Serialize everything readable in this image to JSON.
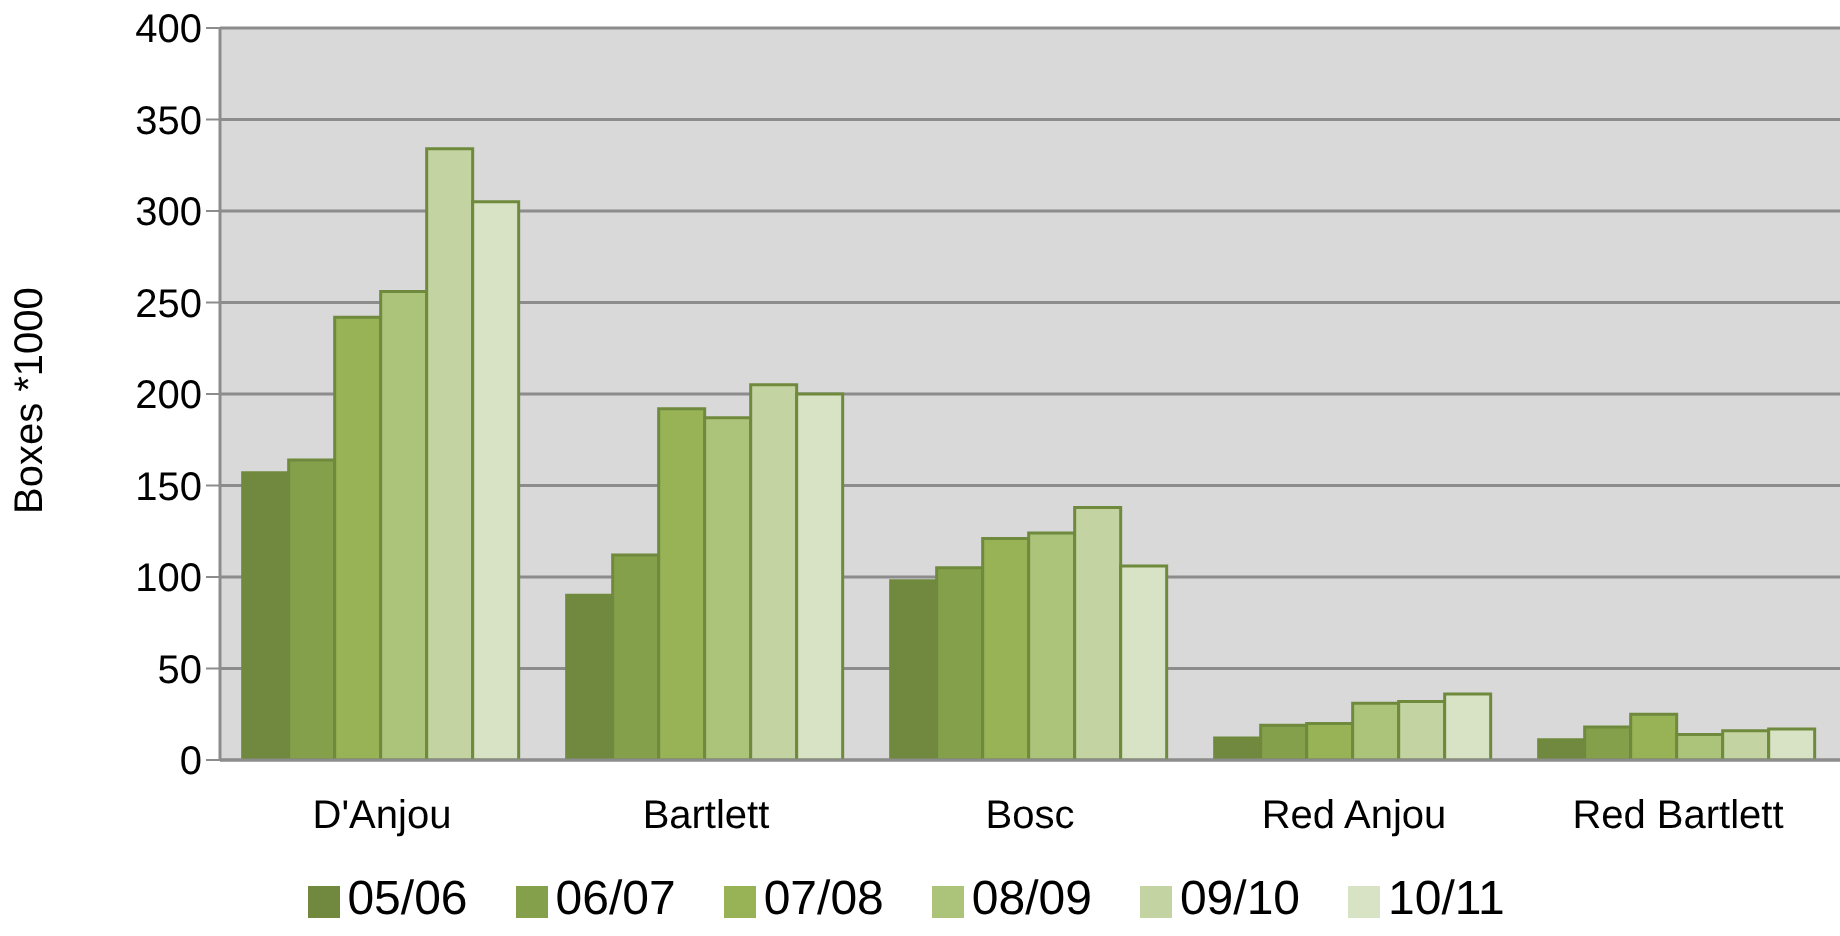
{
  "chart_data": {
    "type": "bar",
    "ylabel": "Boxes *1000",
    "categories": [
      "D'Anjou",
      "Bartlett",
      "Bosc",
      "Red Anjou",
      "Red Bartlett"
    ],
    "series": [
      {
        "name": "05/06",
        "color": "#71893f",
        "values": [
          157,
          90,
          98,
          12,
          11
        ]
      },
      {
        "name": "06/07",
        "color": "#84a04a",
        "values": [
          164,
          112,
          105,
          19,
          18
        ]
      },
      {
        "name": "07/08",
        "color": "#97b356",
        "values": [
          242,
          192,
          121,
          20,
          25
        ]
      },
      {
        "name": "08/09",
        "color": "#abc47a",
        "values": [
          256,
          187,
          124,
          31,
          14
        ]
      },
      {
        "name": "09/10",
        "color": "#c3d3a2",
        "values": [
          334,
          205,
          138,
          32,
          16
        ]
      },
      {
        "name": "10/11",
        "color": "#d8e2c4",
        "values": [
          305,
          200,
          106,
          36,
          17
        ]
      }
    ],
    "ylim": [
      0,
      400
    ],
    "yticks": [
      0,
      50,
      100,
      150,
      200,
      250,
      300,
      350,
      400
    ],
    "grid": "y",
    "legend": "bottom"
  }
}
